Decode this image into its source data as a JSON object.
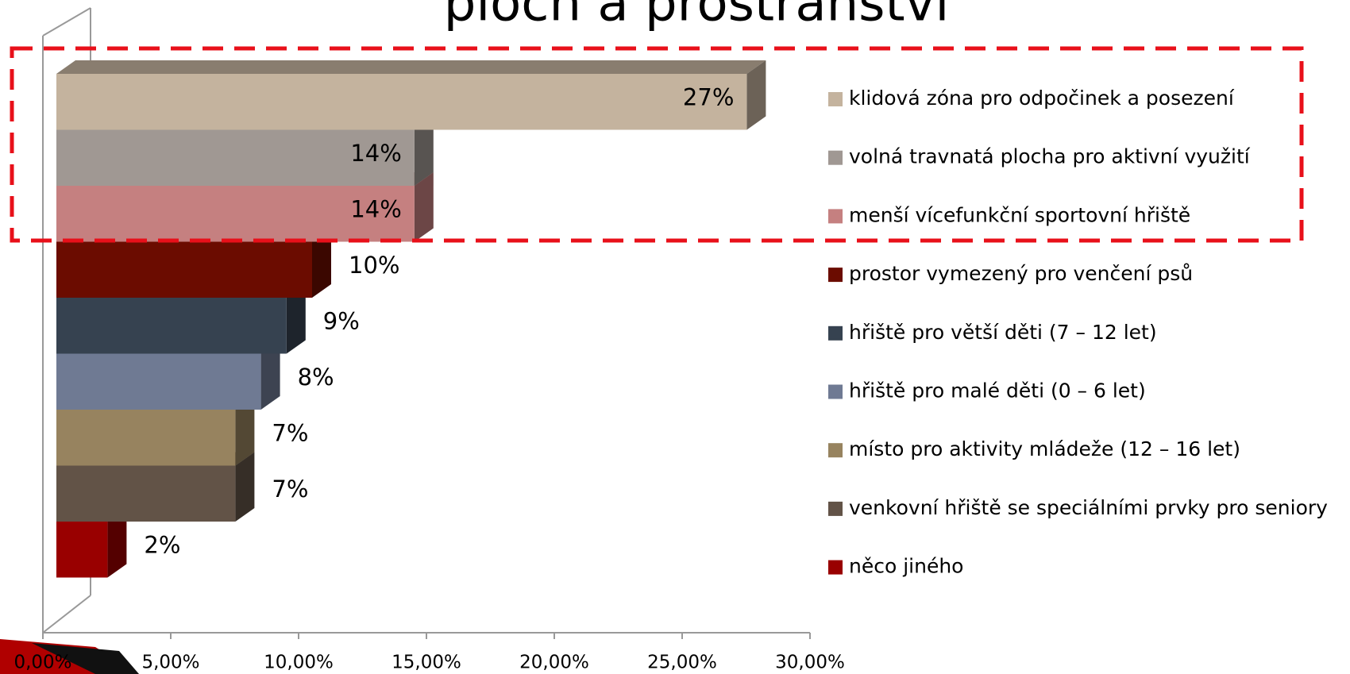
{
  "chart_data": {
    "type": "bar3d_horizontal",
    "title": "ploch a prostranství",
    "categories": [
      "klidová zóna pro odpočinek a posezení",
      "volná travnatá plocha pro aktivní využití",
      "menší vícefunkční sportovní hřiště",
      "prostor vymezený pro venčení psů",
      "hřiště pro větší děti (7 – 12 let)",
      "hřiště pro malé děti (0 – 6 let)",
      "místo pro aktivity mládeže (12 – 16 let)",
      "venkovní hřiště se speciálními prvky pro seniory",
      "něco jiného"
    ],
    "values": [
      27,
      14,
      14,
      10,
      9,
      8,
      7,
      7,
      2
    ],
    "value_labels": [
      "27%",
      "14%",
      "14%",
      "10%",
      "9%",
      "8%",
      "7%",
      "7%",
      "2%"
    ],
    "colors": [
      "#c4b39e",
      "#a09893",
      "#c58080",
      "#6b0c00",
      "#364250",
      "#6f7a93",
      "#97835f",
      "#625347",
      "#990000"
    ],
    "xlim": [
      0,
      30
    ],
    "xticks": [
      {
        "value": 0,
        "label": "0,00%"
      },
      {
        "value": 5,
        "label": "5,00%"
      },
      {
        "value": 10,
        "label": "10,00%"
      },
      {
        "value": 15,
        "label": "15,00%"
      },
      {
        "value": 20,
        "label": "20,00%"
      },
      {
        "value": 25,
        "label": "25,00%"
      },
      {
        "value": 30,
        "label": "30,00%"
      }
    ],
    "legend": "right"
  }
}
